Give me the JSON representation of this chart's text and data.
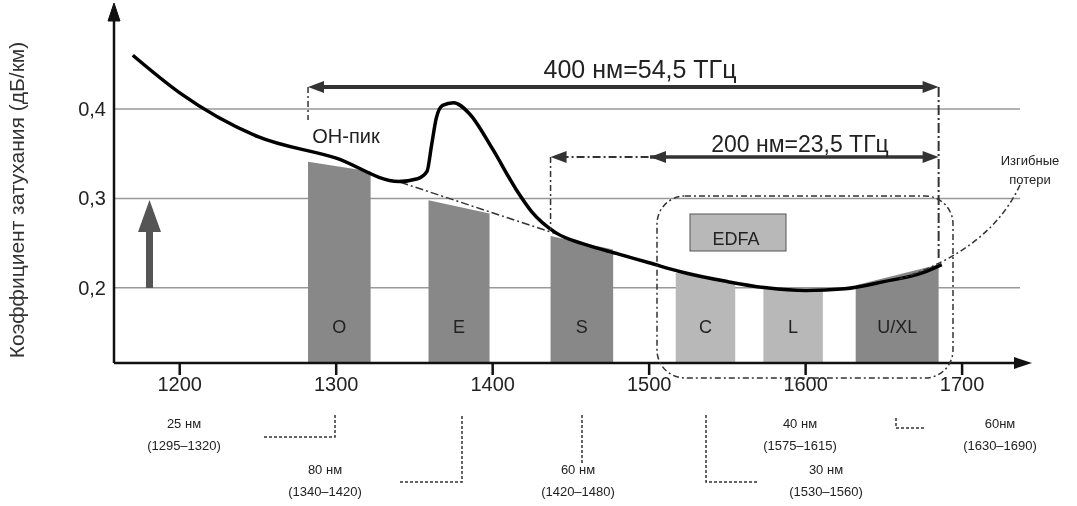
{
  "chart_data": {
    "type": "line",
    "ylabel": "Коэффициент затухания (дБ/км)",
    "xlim": [
      1158,
      1737
    ],
    "ylim": [
      0.116,
      0.505
    ],
    "xticks": [
      1200,
      1300,
      1400,
      1500,
      1600,
      1700
    ],
    "yticks": [
      {
        "value": 0.2,
        "label": "0,2"
      },
      {
        "value": 0.3,
        "label": "0,3"
      },
      {
        "value": 0.4,
        "label": "0,4"
      }
    ],
    "grid": "y",
    "marker": "none",
    "series": [
      {
        "type": "area",
        "name": "O",
        "color": "#888888",
        "x": [
          1282,
          1322
        ],
        "values": [
          0.341,
          0.33
        ]
      },
      {
        "type": "area",
        "name": "E",
        "color": "#888888",
        "x": [
          1359,
          1398
        ],
        "values": [
          0.298,
          0.283
        ]
      },
      {
        "type": "area",
        "name": "S",
        "color": "#888888",
        "x": [
          1437,
          1477
        ],
        "values": [
          0.258,
          0.243
        ]
      },
      {
        "type": "area",
        "name": "C",
        "color": "#b8b8b8",
        "x": [
          1517,
          1555
        ],
        "values": [
          0.217,
          0.204
        ]
      },
      {
        "type": "area",
        "name": "L",
        "color": "#b8b8b8",
        "x": [
          1573,
          1611
        ],
        "values": [
          0.199,
          0.197
        ]
      },
      {
        "type": "area",
        "name": "U/XL",
        "color": "#888888",
        "x": [
          1632,
          1685
        ],
        "values": [
          0.203,
          0.226
        ]
      },
      {
        "type": "line",
        "color": "#333333",
        "line_style": "dashed",
        "x": [
          1341,
          1443
        ],
        "values": [
          0.318,
          0.259
        ]
      },
      {
        "color": "#000000",
        "x": [
          1170,
          1200,
          1250,
          1300,
          1340,
          1352,
          1358,
          1361,
          1364,
          1368,
          1375,
          1385,
          1400,
          1415,
          1425,
          1440,
          1460,
          1480,
          1500,
          1520,
          1550,
          1575,
          1600,
          1625,
          1650,
          1675,
          1687
        ],
        "values": [
          0.46,
          0.418,
          0.369,
          0.345,
          0.319,
          0.322,
          0.33,
          0.36,
          0.39,
          0.404,
          0.407,
          0.395,
          0.355,
          0.31,
          0.285,
          0.262,
          0.248,
          0.238,
          0.228,
          0.218,
          0.207,
          0.2,
          0.197,
          0.199,
          0.207,
          0.217,
          0.226
        ]
      }
    ],
    "annotations": [
      "400 нм=54,5 ТГц",
      "200 нм=23,5 ТГц",
      "ОН-пик",
      "EDFA",
      {
        "text": "Изгибные потери",
        "x": 1660,
        "y": 0.21
      },
      "25 нм",
      "(1295–1320)",
      "80 нм",
      "(1340–1420)",
      "60 нм",
      "(1420–1480)",
      "40 нм",
      "(1575–1615)",
      "30 нм",
      "(1530–1560)",
      "60нм",
      "(1630–1690)"
    ]
  }
}
